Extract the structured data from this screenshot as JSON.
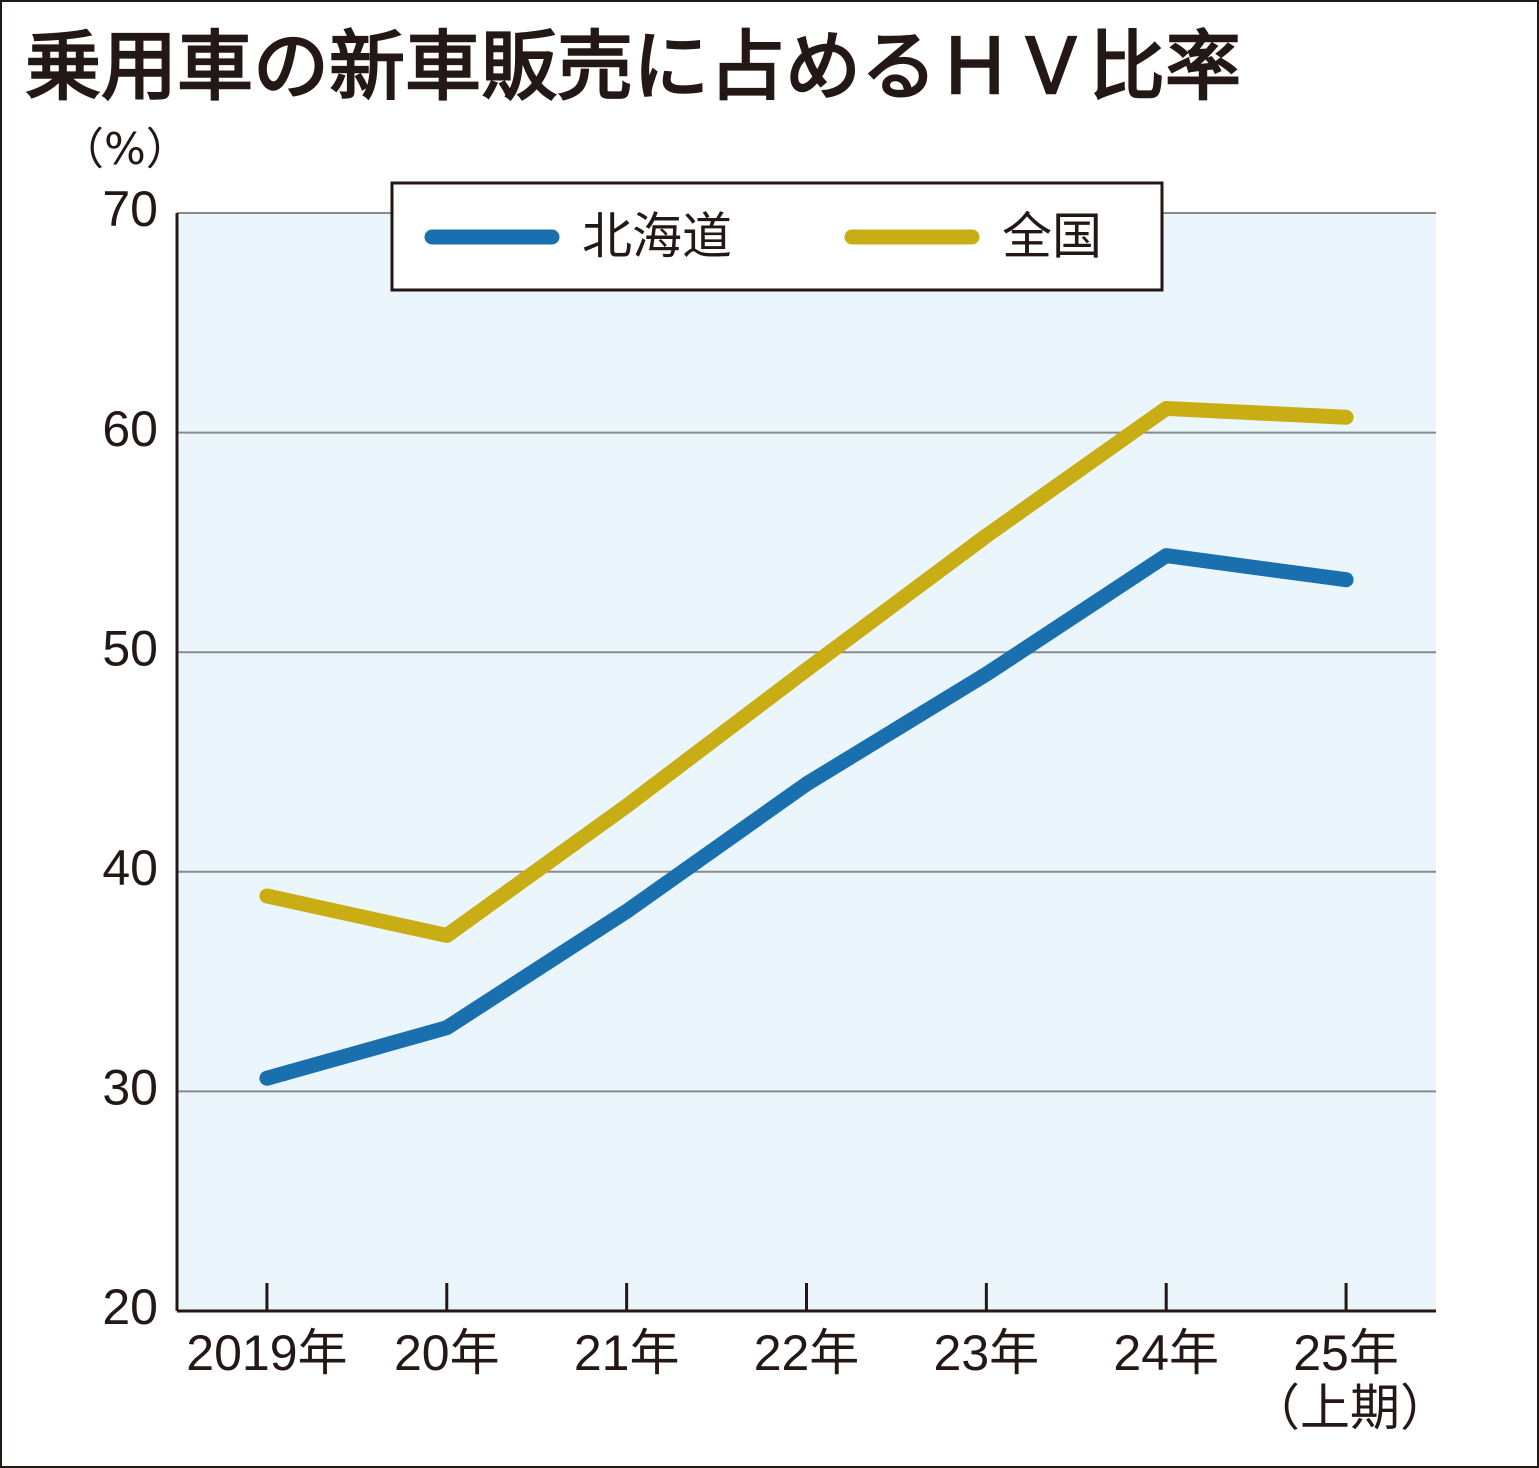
{
  "chart_data": {
    "type": "line",
    "title": "乗用車の新車販売に占めるＨＶ比率",
    "y_unit": "（%）",
    "categories": [
      "2019年",
      "20年",
      "21年",
      "22年",
      "23年",
      "24年",
      "25年"
    ],
    "category_note": "（上期）",
    "series": [
      {
        "name": "北海道",
        "color": "#1a6fae",
        "values": [
          30.6,
          32.9,
          38.2,
          44.0,
          49.0,
          54.4,
          53.3
        ]
      },
      {
        "name": "全国",
        "color": "#c8ad14",
        "values": [
          38.9,
          37.1,
          43.0,
          49.2,
          55.3,
          61.1,
          60.7
        ]
      }
    ],
    "ylim": [
      20,
      70
    ],
    "yticks": [
      20,
      30,
      40,
      50,
      60,
      70
    ],
    "grid": true
  }
}
